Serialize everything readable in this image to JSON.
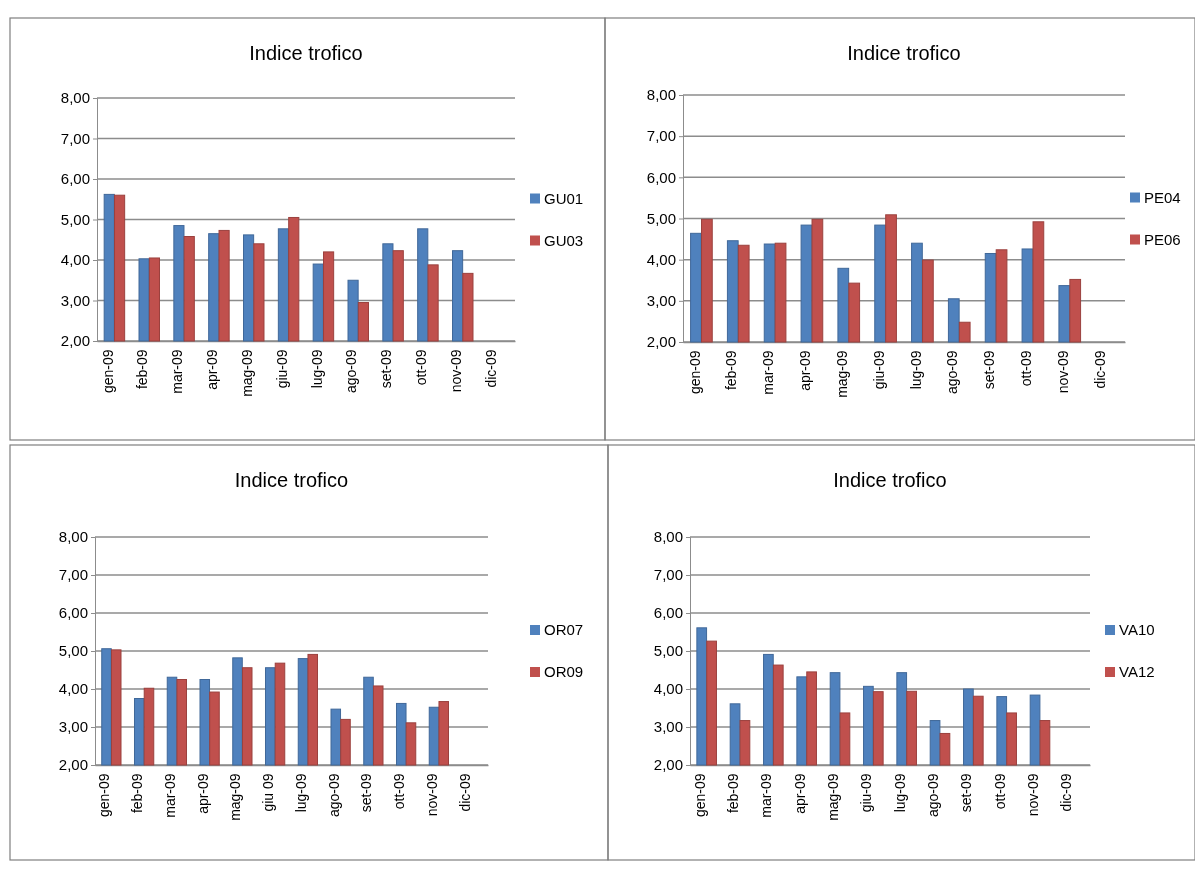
{
  "chart_data": [
    {
      "type": "bar",
      "title": "Indice trofico",
      "categories": [
        "gen-09",
        "feb-09",
        "mar-09",
        "apr-09",
        "mag-09",
        "giu-09",
        "lug-09",
        "ago-09",
        "set-09",
        "ott-09",
        "nov-09",
        "dic-09"
      ],
      "series": [
        {
          "name": "GU01",
          "color": "#4f81bd",
          "values": [
            5.62,
            4.03,
            4.85,
            4.65,
            4.62,
            4.77,
            3.9,
            3.5,
            4.4,
            4.77,
            4.23,
            2.0
          ]
        },
        {
          "name": "GU03",
          "color": "#c0504d",
          "values": [
            5.6,
            4.05,
            4.58,
            4.73,
            4.4,
            5.05,
            4.2,
            2.95,
            4.23,
            3.88,
            3.67,
            2.0
          ]
        }
      ],
      "ylim": [
        2,
        8
      ],
      "yticks": [
        {
          "value": 2,
          "label": "2,00"
        },
        {
          "value": 3,
          "label": "3,00"
        },
        {
          "value": 4,
          "label": "4,00"
        },
        {
          "value": 5,
          "label": "5,00"
        },
        {
          "value": 6,
          "label": "6,00"
        },
        {
          "value": 7,
          "label": "7,00"
        },
        {
          "value": 8,
          "label": "8,00"
        }
      ],
      "grid": "y",
      "legend": "right"
    },
    {
      "type": "bar",
      "title": "Indice trofico",
      "categories": [
        "gen-09",
        "feb-09",
        "mar-09",
        "apr-09",
        "mag-09",
        "giu-09",
        "lug-09",
        "ago-09",
        "set-09",
        "ott-09",
        "nov-09",
        "dic-09"
      ],
      "series": [
        {
          "name": "PE04",
          "color": "#4f81bd",
          "values": [
            4.64,
            4.46,
            4.38,
            4.84,
            3.79,
            4.84,
            4.4,
            3.05,
            4.15,
            4.26,
            3.37,
            2.0
          ]
        },
        {
          "name": "PE06",
          "color": "#c0504d",
          "values": [
            4.98,
            4.35,
            4.4,
            4.98,
            3.43,
            5.09,
            3.99,
            2.48,
            4.24,
            4.92,
            3.52,
            2.0
          ]
        }
      ],
      "ylim": [
        2,
        8
      ],
      "yticks": [
        {
          "value": 2,
          "label": "2,00"
        },
        {
          "value": 3,
          "label": "3,00"
        },
        {
          "value": 4,
          "label": "4,00"
        },
        {
          "value": 5,
          "label": "5,00"
        },
        {
          "value": 6,
          "label": "6,00"
        },
        {
          "value": 7,
          "label": "7,00"
        },
        {
          "value": 8,
          "label": "8,00"
        }
      ],
      "grid": "y",
      "legend": "right"
    },
    {
      "type": "bar",
      "title": "Indice trofico",
      "categories": [
        "gen-09",
        "feb-09",
        "mar-09",
        "apr-09",
        "mag-09",
        "giu 09",
        "lug-09",
        "ago-09",
        "set-09",
        "ott-09",
        "nov-09",
        "dic-09"
      ],
      "series": [
        {
          "name": "OR07",
          "color": "#4f81bd",
          "values": [
            5.06,
            3.75,
            4.31,
            4.25,
            4.82,
            4.56,
            4.8,
            3.47,
            4.31,
            3.62,
            3.52,
            2.0
          ]
        },
        {
          "name": "OR09",
          "color": "#c0504d",
          "values": [
            5.03,
            4.02,
            4.25,
            3.92,
            4.56,
            4.68,
            4.91,
            3.2,
            4.08,
            3.11,
            3.67,
            2.0
          ]
        }
      ],
      "ylim": [
        2,
        8
      ],
      "yticks": [
        {
          "value": 2,
          "label": "2,00"
        },
        {
          "value": 3,
          "label": "3,00"
        },
        {
          "value": 4,
          "label": "4,00"
        },
        {
          "value": 5,
          "label": "5,00"
        },
        {
          "value": 6,
          "label": "6,00"
        },
        {
          "value": 7,
          "label": "7,00"
        },
        {
          "value": 8,
          "label": "8,00"
        }
      ],
      "grid": "y",
      "legend": "right"
    },
    {
      "type": "bar",
      "title": "Indice trofico",
      "categories": [
        "gen-09",
        "feb-09",
        "mar-09",
        "apr-09",
        "mag-09",
        "giu-09",
        "lug-09",
        "ago-09",
        "set-09",
        "ott-09",
        "nov-09",
        "dic-09"
      ],
      "series": [
        {
          "name": "VA10",
          "color": "#4f81bd",
          "values": [
            5.61,
            3.61,
            4.91,
            4.32,
            4.43,
            4.07,
            4.43,
            3.17,
            4.0,
            3.8,
            3.84,
            2.0
          ]
        },
        {
          "name": "VA12",
          "color": "#c0504d",
          "values": [
            5.26,
            3.17,
            4.63,
            4.45,
            3.37,
            3.93,
            3.94,
            2.83,
            3.81,
            3.37,
            3.17,
            2.0
          ]
        }
      ],
      "ylim": [
        2,
        8
      ],
      "yticks": [
        {
          "value": 2,
          "label": "2,00"
        },
        {
          "value": 3,
          "label": "3,00"
        },
        {
          "value": 4,
          "label": "4,00"
        },
        {
          "value": 5,
          "label": "5,00"
        },
        {
          "value": 6,
          "label": "6,00"
        },
        {
          "value": 7,
          "label": "7,00"
        },
        {
          "value": 8,
          "label": "8,00"
        }
      ],
      "grid": "y",
      "legend": "right"
    }
  ]
}
